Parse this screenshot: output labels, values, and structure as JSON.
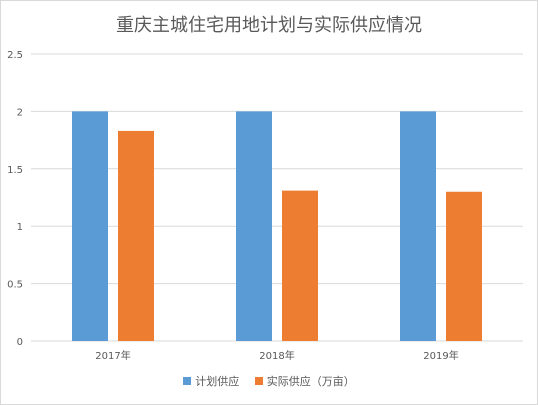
{
  "chart_data": {
    "type": "bar",
    "title": "重庆主城住宅用地计划与实际供应情况",
    "categories": [
      "2017年",
      "2018年",
      "2019年"
    ],
    "series": [
      {
        "name": "计划供应",
        "values": [
          2,
          2,
          2
        ],
        "color": "#5b9bd5"
      },
      {
        "name": "实际供应（万亩）",
        "values": [
          1.83,
          1.31,
          1.3
        ],
        "color": "#ed7d31"
      }
    ],
    "ylim": [
      0,
      2.5
    ],
    "yticks": [
      "0",
      "0.5",
      "1",
      "1.5",
      "2",
      "2.5"
    ],
    "grid": true,
    "legend_position": "bottom"
  }
}
